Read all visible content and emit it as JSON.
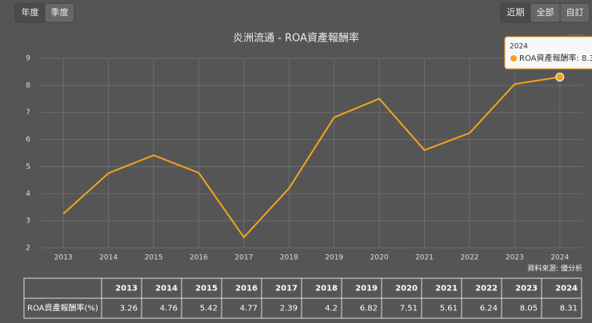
{
  "buttons": {
    "period": [
      "年度",
      "季度"
    ],
    "range": [
      "近期",
      "全部",
      "自訂"
    ]
  },
  "chart_data": {
    "type": "line",
    "title": "炎洲流通 - ROA資產報酬率",
    "categories": [
      "2013",
      "2014",
      "2015",
      "2016",
      "2017",
      "2018",
      "2019",
      "2020",
      "2021",
      "2022",
      "2023",
      "2024"
    ],
    "series": [
      {
        "name": "ROA資產報酬率(%)",
        "color": "#f5a31a",
        "values": [
          3.26,
          4.76,
          5.42,
          4.77,
          2.39,
          4.2,
          6.82,
          7.51,
          5.61,
          6.24,
          8.05,
          8.31
        ]
      }
    ],
    "ylim": [
      2,
      9
    ],
    "yticks": [
      2,
      3,
      4,
      5,
      6,
      7,
      8,
      9
    ],
    "grid": true,
    "tooltip": {
      "title": "2024",
      "text": "ROA資產報酬率: 8.3"
    },
    "source": "資料來源: 優分析"
  }
}
